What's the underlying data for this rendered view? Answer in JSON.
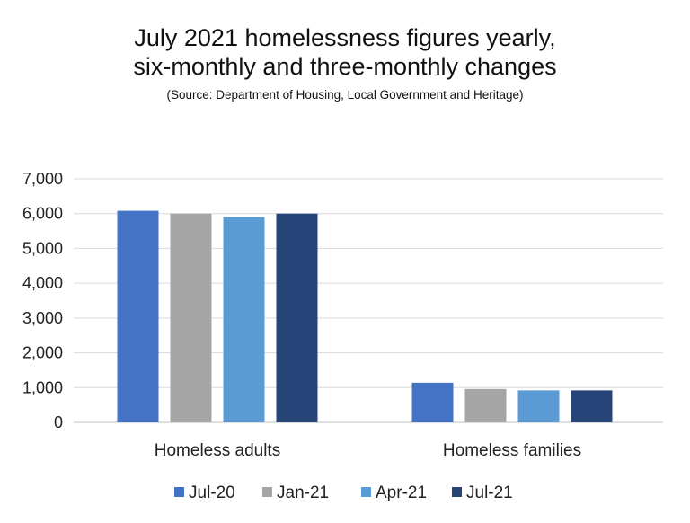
{
  "title_line1": "July 2021 homelessness figures yearly,",
  "title_line2": "six-monthly and three-monthly changes",
  "subtitle": "(Source: Department of Housing, Local Government and Heritage)",
  "chart_data": {
    "type": "bar",
    "title": "July 2021 homelessness figures yearly, six-monthly and three-monthly changes",
    "subtitle": "(Source: Department of Housing, Local Government and Heritage)",
    "categories": [
      "Homeless adults",
      "Homeless families"
    ],
    "series": [
      {
        "name": "Jul-20",
        "color": "#4472c4",
        "values": [
          6080,
          1140
        ]
      },
      {
        "name": "Jan-21",
        "color": "#a5a5a5",
        "values": [
          6000,
          960
        ]
      },
      {
        "name": "Apr-21",
        "color": "#5b9bd5",
        "values": [
          5900,
          920
        ]
      },
      {
        "name": "Jul-21",
        "color": "#264478",
        "values": [
          6000,
          920
        ]
      }
    ],
    "yticks": [
      "0",
      "1,000",
      "2,000",
      "3,000",
      "4,000",
      "5,000",
      "6,000",
      "7,000"
    ],
    "ylim": [
      0,
      7000
    ],
    "grid": true,
    "legend_position": "bottom"
  }
}
